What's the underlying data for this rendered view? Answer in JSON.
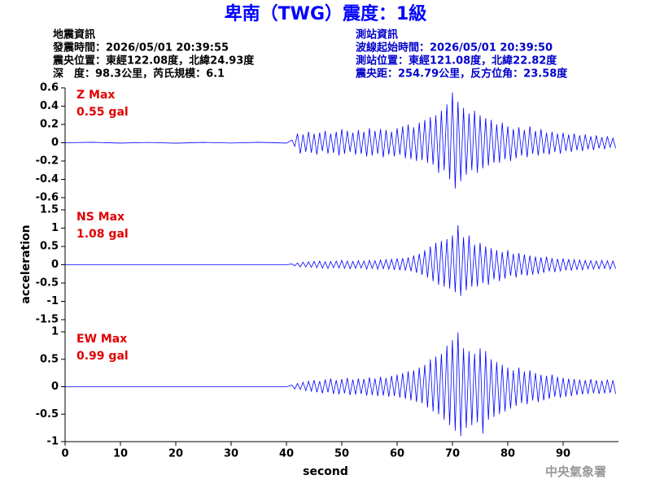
{
  "header": {
    "title": "卑南（TWG）震度：1級",
    "quake": [
      "地震資訊",
      "發震時間：2026/05/01 20:39:55",
      "震央位置：東經122.08度，北緯24.93度",
      "深　度：98.3公里，芮氏規模：6.1"
    ],
    "station": [
      "測站資訊",
      "波線起始時間：2026/05/01 20:39:50",
      "測站位置：東經121.08度，北緯22.82度",
      "震央距：254.79公里，反方位角：23.58度"
    ]
  },
  "footer": "中央氣象署",
  "chart_data": {
    "type": "line",
    "ylabel": "acceleration",
    "xlabel": "second",
    "xlim": [
      0,
      100
    ],
    "xticks": [
      0,
      10,
      20,
      30,
      40,
      50,
      60,
      70,
      80,
      90
    ],
    "x": [
      0,
      5,
      10,
      15,
      20,
      25,
      30,
      35,
      40,
      41,
      41.5,
      42,
      42.5,
      43,
      43.5,
      44,
      44.5,
      45,
      45.5,
      46,
      46.5,
      47,
      47.5,
      48,
      48.5,
      49,
      49.5,
      50,
      50.5,
      51,
      51.5,
      52,
      52.5,
      53,
      53.5,
      54,
      54.5,
      55,
      55.5,
      56,
      56.5,
      57,
      57.5,
      58,
      58.5,
      59,
      59.5,
      60,
      60.5,
      61,
      61.5,
      62,
      62.5,
      63,
      63.5,
      64,
      64.5,
      65,
      65.5,
      66,
      66.5,
      67,
      67.5,
      68,
      68.5,
      69,
      69.5,
      70,
      70.5,
      71,
      71.5,
      72,
      72.5,
      73,
      73.5,
      74,
      74.5,
      75,
      75.5,
      76,
      76.5,
      77,
      77.5,
      78,
      78.5,
      79,
      79.5,
      80,
      80.5,
      81,
      81.5,
      82,
      82.5,
      83,
      83.5,
      84,
      84.5,
      85,
      85.5,
      86,
      86.5,
      87,
      87.5,
      88,
      88.5,
      89,
      89.5,
      90,
      90.5,
      91,
      91.5,
      92,
      92.5,
      93,
      93.5,
      94,
      94.5,
      95,
      95.5,
      96,
      96.5,
      97,
      97.5,
      98,
      98.5,
      99,
      99.5
    ],
    "panels": [
      {
        "name": "Z Max",
        "max_label": "0.55 gal",
        "color": "#0000ff",
        "ylim": [
          -0.6,
          0.6
        ],
        "yticks": [
          -0.6,
          -0.4,
          -0.2,
          0,
          0.2,
          0.4,
          0.6
        ],
        "values": [
          0,
          0.005,
          -0.004,
          0.003,
          -0.005,
          0.004,
          -0.003,
          0.005,
          -0.004,
          0.03,
          -0.04,
          0.1,
          -0.12,
          0.09,
          -0.1,
          0.12,
          -0.11,
          0.1,
          -0.13,
          0.11,
          -0.09,
          0.13,
          -0.12,
          0.1,
          -0.11,
          0.12,
          -0.14,
          0.15,
          -0.12,
          0.13,
          -0.1,
          0.11,
          -0.13,
          0.14,
          -0.12,
          0.12,
          -0.15,
          0.16,
          -0.14,
          0.13,
          -0.12,
          0.15,
          -0.16,
          0.14,
          -0.13,
          0.12,
          -0.15,
          0.16,
          -0.13,
          0.18,
          -0.17,
          0.2,
          -0.18,
          0.17,
          -0.2,
          0.22,
          -0.19,
          0.25,
          -0.22,
          0.28,
          -0.24,
          0.3,
          -0.33,
          0.35,
          -0.3,
          0.42,
          -0.4,
          0.55,
          -0.5,
          0.45,
          -0.42,
          0.38,
          -0.35,
          0.32,
          -0.3,
          0.35,
          -0.33,
          0.3,
          -0.28,
          0.27,
          -0.25,
          0.25,
          -0.22,
          0.2,
          -0.22,
          0.22,
          -0.18,
          0.18,
          -0.2,
          0.15,
          -0.17,
          0.17,
          -0.14,
          0.14,
          -0.16,
          0.18,
          -0.12,
          0.13,
          -0.14,
          0.15,
          -0.12,
          0.11,
          -0.13,
          0.12,
          -0.1,
          0.1,
          -0.12,
          0.11,
          -0.09,
          0.09,
          -0.1,
          0.1,
          -0.08,
          0.08,
          -0.09,
          0.09,
          -0.07,
          0.07,
          -0.08,
          0.08,
          -0.06,
          0.06,
          -0.07,
          0.07,
          -0.05,
          0.05,
          -0.06
        ]
      },
      {
        "name": "NS Max",
        "max_label": "1.08 gal",
        "color": "#0000ff",
        "ylim": [
          -1.5,
          1.5
        ],
        "yticks": [
          -1.5,
          -1,
          -0.5,
          0,
          0.5,
          1,
          1.5
        ],
        "values": [
          0,
          0,
          0,
          0,
          0,
          0,
          0,
          0,
          0,
          0.02,
          -0.03,
          0.05,
          -0.06,
          0.07,
          -0.06,
          0.08,
          -0.07,
          0.09,
          -0.08,
          0.1,
          -0.09,
          0.08,
          -0.1,
          0.09,
          -0.08,
          0.1,
          -0.09,
          0.12,
          -0.1,
          0.1,
          -0.11,
          0.09,
          -0.1,
          0.11,
          -0.09,
          0.1,
          -0.12,
          0.12,
          -0.1,
          0.11,
          -0.12,
          0.13,
          -0.11,
          0.14,
          -0.12,
          0.15,
          -0.14,
          0.17,
          -0.15,
          0.18,
          -0.16,
          0.2,
          -0.18,
          0.25,
          -0.22,
          0.3,
          -0.28,
          0.4,
          -0.35,
          0.5,
          -0.45,
          0.6,
          -0.55,
          0.65,
          -0.6,
          0.7,
          -0.65,
          0.8,
          -0.75,
          1.08,
          -0.85,
          0.75,
          -0.7,
          0.8,
          -0.6,
          0.55,
          -0.6,
          0.6,
          -0.5,
          0.5,
          -0.55,
          0.45,
          -0.4,
          0.4,
          -0.45,
          0.35,
          -0.38,
          0.4,
          -0.3,
          0.3,
          -0.35,
          0.32,
          -0.28,
          0.28,
          -0.3,
          0.25,
          -0.27,
          0.22,
          -0.25,
          0.2,
          -0.22,
          0.22,
          -0.18,
          0.18,
          -0.2,
          0.16,
          -0.18,
          0.17,
          -0.15,
          0.15,
          -0.16,
          0.14,
          -0.13,
          0.13,
          -0.14,
          0.12,
          -0.11,
          0.11,
          -0.12,
          0.1,
          -0.11,
          0.12,
          -0.1,
          0.11,
          -0.12,
          0.1,
          -0.11
        ]
      },
      {
        "name": "EW Max",
        "max_label": "0.99 gal",
        "color": "#0000ff",
        "ylim": [
          -1,
          1
        ],
        "yticks": [
          -1,
          -0.5,
          0,
          0.5,
          1
        ],
        "values": [
          0,
          0,
          0,
          0,
          0,
          0,
          0,
          0,
          0,
          0.03,
          -0.04,
          0.06,
          -0.05,
          0.08,
          -0.07,
          0.1,
          -0.08,
          0.12,
          -0.1,
          0.1,
          -0.12,
          0.13,
          -0.1,
          0.15,
          -0.13,
          0.12,
          -0.14,
          0.14,
          -0.12,
          0.16,
          -0.15,
          0.13,
          -0.14,
          0.15,
          -0.13,
          0.14,
          -0.16,
          0.17,
          -0.15,
          0.15,
          -0.17,
          0.18,
          -0.16,
          0.16,
          -0.18,
          0.2,
          -0.17,
          0.22,
          -0.2,
          0.25,
          -0.22,
          0.28,
          -0.25,
          0.3,
          -0.28,
          0.35,
          -0.3,
          0.4,
          -0.38,
          0.5,
          -0.45,
          0.55,
          -0.5,
          0.6,
          -0.6,
          0.75,
          -0.7,
          0.85,
          -0.8,
          0.99,
          -0.9,
          0.7,
          -0.75,
          0.65,
          -0.7,
          0.6,
          -0.65,
          0.7,
          -0.85,
          0.65,
          -0.6,
          0.5,
          -0.55,
          0.45,
          -0.5,
          0.4,
          -0.45,
          0.35,
          -0.4,
          0.3,
          -0.35,
          0.35,
          -0.3,
          0.28,
          -0.32,
          0.3,
          -0.25,
          0.25,
          -0.28,
          0.22,
          -0.25,
          0.2,
          -0.22,
          0.22,
          -0.18,
          0.18,
          -0.2,
          0.16,
          -0.18,
          0.15,
          -0.17,
          0.14,
          -0.15,
          0.13,
          -0.14,
          0.12,
          -0.13,
          0.14,
          -0.12,
          0.12,
          -0.13,
          0.11,
          -0.12,
          0.13,
          -0.11,
          0.12,
          -0.13
        ]
      }
    ]
  }
}
